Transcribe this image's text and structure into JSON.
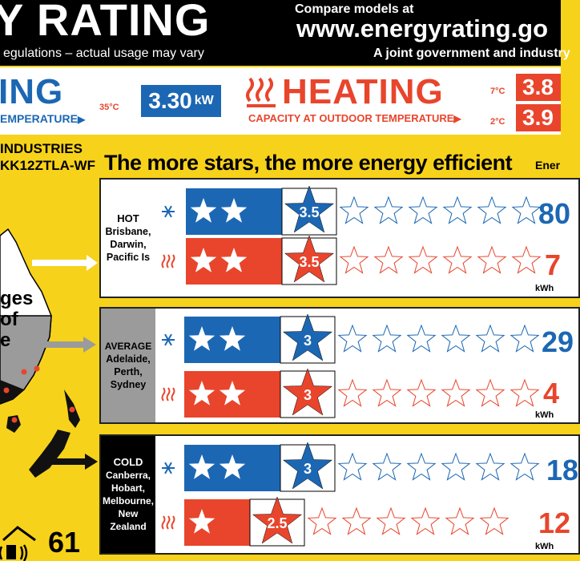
{
  "header": {
    "title": "Y RATING",
    "disclaimer": "egulations – actual usage may vary",
    "compare": "Compare models at",
    "url": "www.energyrating.go",
    "joint": "A joint government and industry"
  },
  "capacity": {
    "cooling": {
      "word": "ING",
      "subtitle": "EMPERATURE",
      "temp": "35°C",
      "value": "3.30",
      "unit": "kW",
      "color": "#1c67b3"
    },
    "heating": {
      "word": "HEATING",
      "subtitle": "CAPACITY AT OUTDOOR TEMPERATURE",
      "temp_7": "7°C",
      "value_7": "3.8",
      "temp_2": "2°C",
      "value_2": "3.9",
      "color": "#e8452c"
    }
  },
  "product": {
    "brand": "INDUSTRIES",
    "model": "KK12ZTLA-WF"
  },
  "tagline": "The more stars, the more energy efficient",
  "energy_heading": "Ener",
  "map": {
    "lines": [
      "ges",
      "of",
      "e"
    ],
    "zone_number": "61"
  },
  "zones": [
    {
      "name": "HOT",
      "places": [
        "Brisbane,",
        "Darwin,",
        "Pacific Is"
      ],
      "cooling_stars": 3.5,
      "cooling_label": "3.5",
      "cooling_value": "80",
      "heating_stars": 3.5,
      "heating_label": "3.5",
      "heating_value": "7",
      "unit": "kWh"
    },
    {
      "name": "AVERAGE",
      "places": [
        "Adelaide,",
        "Perth,",
        "Sydney"
      ],
      "cooling_stars": 3,
      "cooling_label": "3",
      "cooling_value": "29",
      "heating_stars": 3,
      "heating_label": "3",
      "heating_value": "4",
      "unit": "kWh"
    },
    {
      "name": "COLD",
      "places": [
        "Canberra,",
        "Hobart,",
        "Melbourne,",
        "New Zealand"
      ],
      "cooling_stars": 3,
      "cooling_label": "3",
      "cooling_value": "18",
      "heating_stars": 2.5,
      "heating_label": "2.5",
      "heating_value": "12",
      "unit": "kWh"
    }
  ],
  "colors": {
    "blue": "#1c67b3",
    "red": "#e8452c",
    "yellow": "#f7d21a",
    "grey": "#9b9b9b"
  },
  "icons": {
    "cooling": "snowflake-icon",
    "heating": "heat-waves-icon"
  }
}
